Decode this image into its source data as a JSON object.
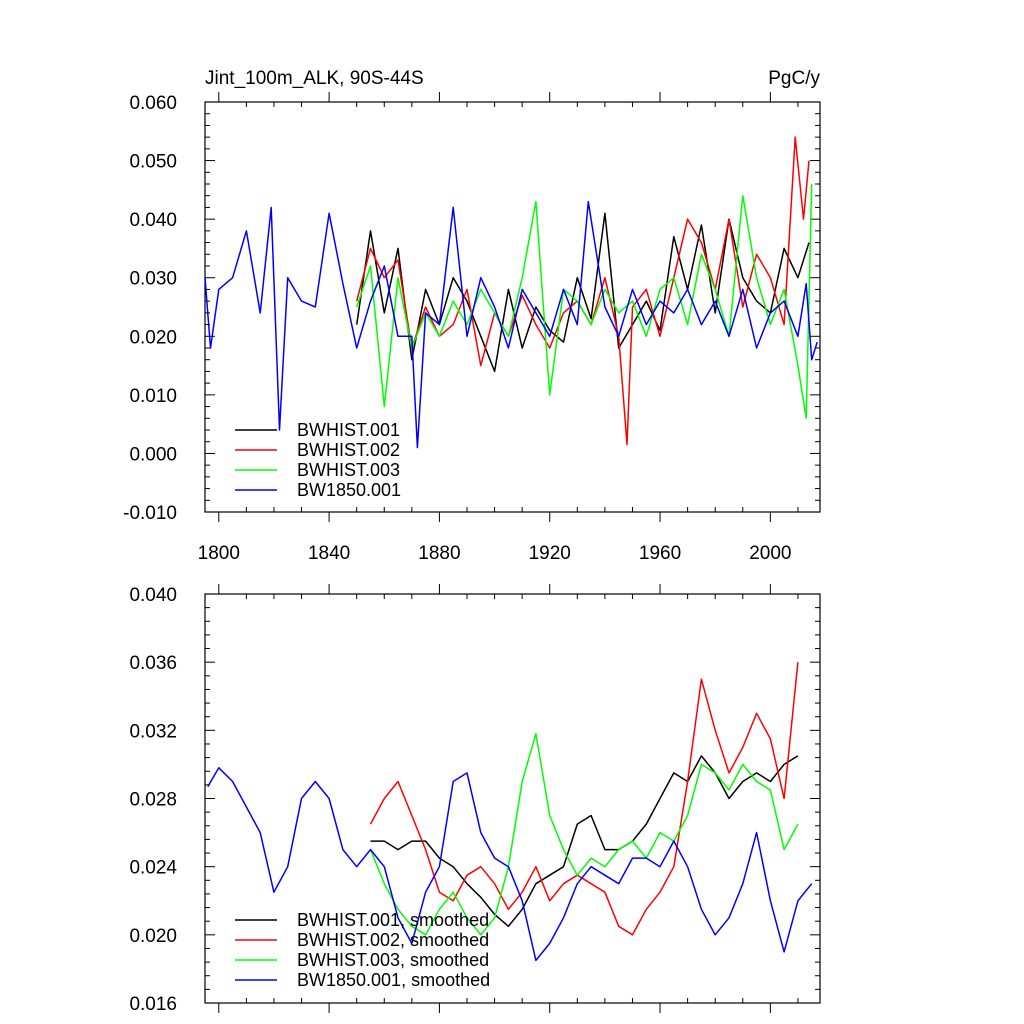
{
  "chart_data": [
    {
      "type": "line",
      "title": "Jint_100m_ALK, 90S-44S",
      "units": "PgC/y",
      "xlim": [
        1795,
        2018
      ],
      "ylim": [
        -0.01,
        0.06
      ],
      "xticks": [
        1800,
        1840,
        1880,
        1920,
        1960,
        2000
      ],
      "xtick_labels": [
        "1800",
        "1840",
        "1880",
        "1920",
        "1960",
        "2000"
      ],
      "yticks": [
        -0.01,
        0.0,
        0.01,
        0.02,
        0.03,
        0.04,
        0.05,
        0.06
      ],
      "ytick_labels": [
        "-0.010",
        "0.000",
        "0.010",
        "0.020",
        "0.030",
        "0.040",
        "0.050",
        "0.060"
      ],
      "legend_position": "bottom-left",
      "series": [
        {
          "name": "BWHIST.001",
          "color": "#000000",
          "x": [
            1850,
            1855,
            1860,
            1865,
            1870,
            1875,
            1880,
            1885,
            1890,
            1895,
            1900,
            1905,
            1910,
            1915,
            1920,
            1925,
            1930,
            1935,
            1940,
            1945,
            1950,
            1955,
            1960,
            1965,
            1970,
            1975,
            1980,
            1985,
            1990,
            1995,
            2000,
            2005,
            2010,
            2014
          ],
          "values": [
            0.022,
            0.038,
            0.024,
            0.035,
            0.016,
            0.028,
            0.022,
            0.03,
            0.026,
            0.02,
            0.014,
            0.028,
            0.018,
            0.025,
            0.021,
            0.019,
            0.03,
            0.023,
            0.041,
            0.018,
            0.022,
            0.026,
            0.021,
            0.037,
            0.028,
            0.039,
            0.024,
            0.04,
            0.03,
            0.026,
            0.024,
            0.035,
            0.03,
            0.036
          ]
        },
        {
          "name": "BWHIST.002",
          "color": "#ff0000",
          "x": [
            1850,
            1855,
            1860,
            1865,
            1870,
            1875,
            1880,
            1885,
            1890,
            1895,
            1900,
            1905,
            1910,
            1915,
            1920,
            1925,
            1930,
            1935,
            1940,
            1945,
            1948,
            1950,
            1955,
            1960,
            1965,
            1970,
            1975,
            1980,
            1985,
            1990,
            1995,
            2000,
            2005,
            2009,
            2012,
            2014
          ],
          "values": [
            0.026,
            0.035,
            0.03,
            0.033,
            0.018,
            0.025,
            0.02,
            0.022,
            0.028,
            0.015,
            0.024,
            0.02,
            0.027,
            0.022,
            0.018,
            0.024,
            0.026,
            0.022,
            0.03,
            0.02,
            0.0015,
            0.025,
            0.028,
            0.02,
            0.03,
            0.04,
            0.036,
            0.028,
            0.04,
            0.025,
            0.034,
            0.03,
            0.022,
            0.054,
            0.04,
            0.05
          ]
        },
        {
          "name": "BWHIST.003",
          "color": "#00ff00",
          "x": [
            1850,
            1855,
            1860,
            1865,
            1870,
            1875,
            1880,
            1885,
            1890,
            1895,
            1900,
            1905,
            1910,
            1915,
            1920,
            1925,
            1930,
            1935,
            1940,
            1945,
            1950,
            1955,
            1960,
            1965,
            1970,
            1975,
            1980,
            1985,
            1990,
            1995,
            2000,
            2005,
            2010,
            2013,
            2015
          ],
          "values": [
            0.025,
            0.032,
            0.008,
            0.03,
            0.018,
            0.024,
            0.02,
            0.026,
            0.022,
            0.028,
            0.024,
            0.02,
            0.03,
            0.043,
            0.01,
            0.028,
            0.026,
            0.022,
            0.028,
            0.024,
            0.026,
            0.02,
            0.028,
            0.03,
            0.022,
            0.034,
            0.028,
            0.02,
            0.044,
            0.03,
            0.022,
            0.028,
            0.015,
            0.006,
            0.046
          ]
        },
        {
          "name": "BW1850.001",
          "color": "#0000ff",
          "x": [
            1795,
            1797,
            1800,
            1805,
            1810,
            1815,
            1819,
            1822,
            1825,
            1830,
            1835,
            1840,
            1845,
            1850,
            1855,
            1860,
            1865,
            1870,
            1872,
            1875,
            1880,
            1885,
            1890,
            1895,
            1900,
            1905,
            1910,
            1915,
            1920,
            1925,
            1930,
            1934,
            1940,
            1945,
            1950,
            1955,
            1960,
            1965,
            1970,
            1975,
            1980,
            1985,
            1990,
            1995,
            2000,
            2005,
            2010,
            2013,
            2015,
            2017
          ],
          "values": [
            0.03,
            0.018,
            0.028,
            0.03,
            0.038,
            0.024,
            0.042,
            0.004,
            0.03,
            0.026,
            0.025,
            0.041,
            0.029,
            0.018,
            0.026,
            0.032,
            0.02,
            0.02,
            0.001,
            0.024,
            0.022,
            0.042,
            0.02,
            0.03,
            0.025,
            0.018,
            0.028,
            0.024,
            0.02,
            0.028,
            0.022,
            0.043,
            0.025,
            0.02,
            0.028,
            0.022,
            0.026,
            0.024,
            0.028,
            0.022,
            0.026,
            0.02,
            0.028,
            0.018,
            0.024,
            0.026,
            0.02,
            0.029,
            0.016,
            0.019
          ]
        }
      ]
    },
    {
      "type": "line",
      "title": "",
      "xlim": [
        1795,
        2018
      ],
      "ylim": [
        0.016,
        0.04
      ],
      "xticks": [
        1800,
        1840,
        1880,
        1920,
        1960,
        2000
      ],
      "yticks": [
        0.016,
        0.02,
        0.024,
        0.028,
        0.032,
        0.036,
        0.04
      ],
      "ytick_labels": [
        "0.016",
        "0.020",
        "0.024",
        "0.028",
        "0.032",
        "0.036",
        "0.040"
      ],
      "legend_position": "bottom-left",
      "series": [
        {
          "name": "BWHIST.001, smoothed",
          "color": "#000000",
          "x": [
            1855,
            1860,
            1865,
            1870,
            1875,
            1880,
            1885,
            1890,
            1895,
            1900,
            1905,
            1910,
            1915,
            1920,
            1925,
            1930,
            1935,
            1940,
            1945,
            1950,
            1955,
            1960,
            1965,
            1970,
            1975,
            1980,
            1985,
            1990,
            1995,
            2000,
            2005,
            2010
          ],
          "values": [
            0.0255,
            0.0255,
            0.025,
            0.0255,
            0.0255,
            0.0245,
            0.024,
            0.023,
            0.0222,
            0.0212,
            0.0205,
            0.0215,
            0.023,
            0.0235,
            0.024,
            0.0265,
            0.027,
            0.025,
            0.025,
            0.0255,
            0.0265,
            0.028,
            0.0295,
            0.029,
            0.0305,
            0.0295,
            0.028,
            0.029,
            0.0295,
            0.029,
            0.03,
            0.0305
          ]
        },
        {
          "name": "BWHIST.002, smoothed",
          "color": "#ff0000",
          "x": [
            1855,
            1860,
            1865,
            1870,
            1875,
            1880,
            1885,
            1890,
            1895,
            1900,
            1905,
            1910,
            1915,
            1920,
            1925,
            1930,
            1935,
            1940,
            1945,
            1950,
            1955,
            1960,
            1965,
            1970,
            1975,
            1980,
            1985,
            1990,
            1995,
            2000,
            2005,
            2010
          ],
          "values": [
            0.0265,
            0.028,
            0.029,
            0.027,
            0.025,
            0.0225,
            0.022,
            0.0235,
            0.024,
            0.023,
            0.0215,
            0.0225,
            0.024,
            0.022,
            0.023,
            0.0235,
            0.023,
            0.0225,
            0.0205,
            0.02,
            0.0215,
            0.0225,
            0.024,
            0.029,
            0.035,
            0.032,
            0.0295,
            0.031,
            0.033,
            0.0315,
            0.028,
            0.036
          ]
        },
        {
          "name": "BWHIST.003, smoothed",
          "color": "#00ff00",
          "x": [
            1855,
            1860,
            1865,
            1870,
            1875,
            1880,
            1885,
            1890,
            1895,
            1900,
            1905,
            1910,
            1915,
            1920,
            1925,
            1930,
            1935,
            1940,
            1945,
            1950,
            1955,
            1960,
            1965,
            1970,
            1975,
            1980,
            1985,
            1990,
            1995,
            2000,
            2005,
            2010
          ],
          "values": [
            0.025,
            0.023,
            0.0215,
            0.0205,
            0.02,
            0.0215,
            0.0225,
            0.021,
            0.02,
            0.021,
            0.024,
            0.029,
            0.0318,
            0.027,
            0.025,
            0.0235,
            0.0245,
            0.024,
            0.025,
            0.0255,
            0.0245,
            0.026,
            0.0255,
            0.027,
            0.03,
            0.0295,
            0.0285,
            0.03,
            0.029,
            0.0285,
            0.025,
            0.0265
          ]
        },
        {
          "name": "BW1850.001, smoothed",
          "color": "#0000ff",
          "x": [
            1796,
            1800,
            1805,
            1810,
            1815,
            1820,
            1825,
            1830,
            1835,
            1840,
            1845,
            1850,
            1855,
            1860,
            1865,
            1870,
            1875,
            1880,
            1885,
            1890,
            1895,
            1900,
            1905,
            1910,
            1915,
            1920,
            1925,
            1930,
            1935,
            1940,
            1945,
            1950,
            1955,
            1960,
            1965,
            1970,
            1975,
            1980,
            1985,
            1990,
            1995,
            2000,
            2005,
            2010,
            2015
          ],
          "values": [
            0.0287,
            0.0298,
            0.029,
            0.0275,
            0.026,
            0.0225,
            0.024,
            0.028,
            0.029,
            0.028,
            0.025,
            0.024,
            0.025,
            0.024,
            0.021,
            0.0195,
            0.0225,
            0.024,
            0.029,
            0.0295,
            0.026,
            0.0245,
            0.024,
            0.022,
            0.0185,
            0.0195,
            0.021,
            0.023,
            0.024,
            0.0235,
            0.023,
            0.0245,
            0.0245,
            0.024,
            0.0255,
            0.024,
            0.0215,
            0.02,
            0.021,
            0.023,
            0.026,
            0.022,
            0.019,
            0.022,
            0.023
          ]
        }
      ]
    }
  ]
}
